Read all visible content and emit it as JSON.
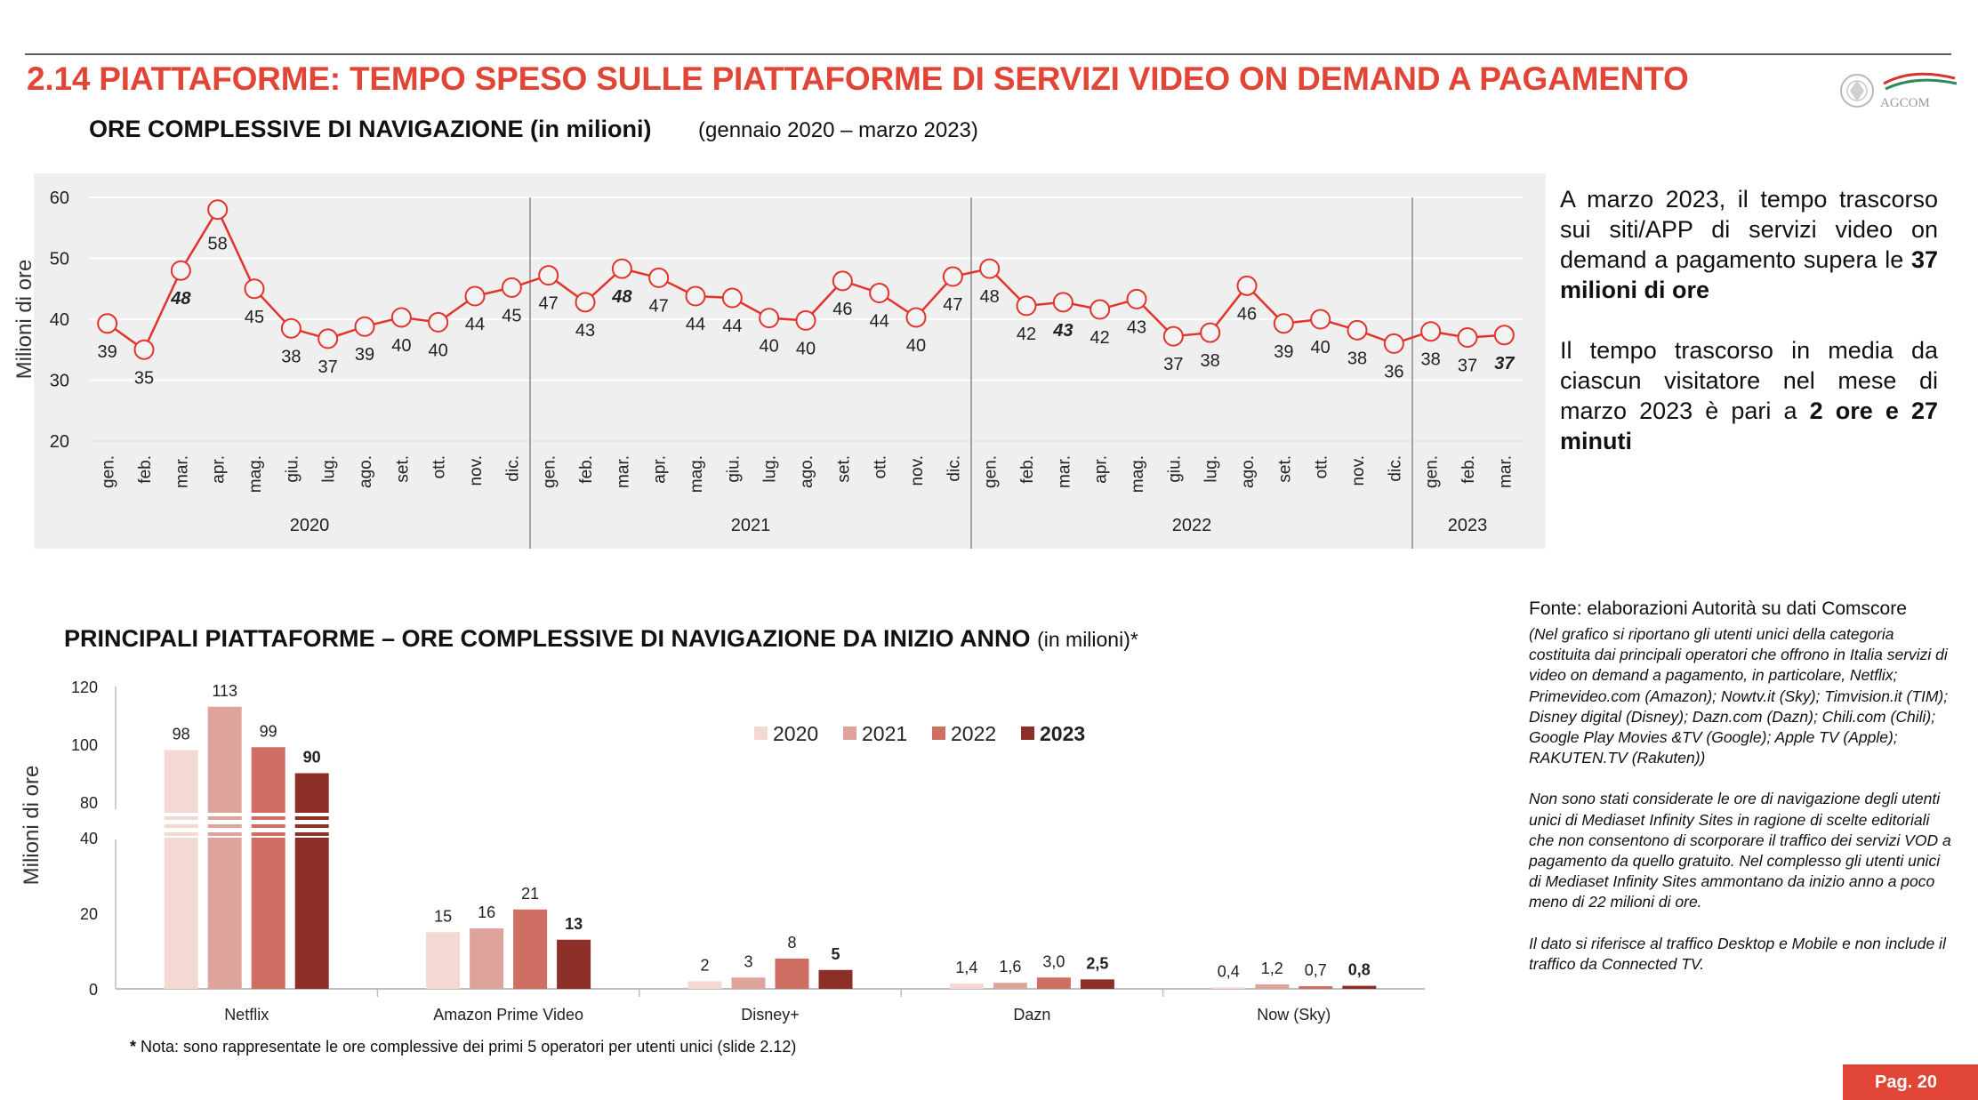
{
  "header": {
    "title": "2.14 PIATTAFORME: TEMPO SPESO SULLE PIATTAFORME DI SERVIZI VIDEO ON DEMAND A PAGAMENTO",
    "logo_text": "AGCOM"
  },
  "section1": {
    "title": "ORE COMPLESSIVE DI NAVIGAZIONE (in milioni)",
    "period": "(gennaio 2020 – marzo 2023)"
  },
  "side_text": {
    "p1_text": "A marzo 2023, il tempo trascorso sui siti/APP di servizi video on demand a pagamento supera le ",
    "p1_bold": "37 milioni di ore",
    "p2_text": "Il tempo trascorso in media da ciascun visitatore nel mese di marzo 2023 è pari a ",
    "p2_bold": "2 ore e 27 minuti"
  },
  "section2": {
    "title": "PRINCIPALI PIATTAFORME – ORE COMPLESSIVE DI NAVIGAZIONE DA INIZIO ANNO",
    "unit": "(in milioni)*"
  },
  "note": {
    "star": "*",
    "text": " Nota: sono rappresentate le ore complessive dei primi 5 operatori per utenti unici (slide 2.12)"
  },
  "source": {
    "fonte": "Fonte: elaborazioni Autorità su dati Comscore",
    "note1": "(Nel grafico si riportano gli utenti unici della categoria costituita dai principali operatori che offrono in Italia servizi di video on demand a pagamento, in particolare, Netflix; Primevideo.com (Amazon); Nowtv.it (Sky); Timvision.it (TIM); Disney digital (Disney); Dazn.com (Dazn); Chili.com (Chili); Google Play Movies &TV (Google); Apple TV (Apple);  RAKUTEN.TV (Rakuten))",
    "note2": "Non sono stati considerate le ore di navigazione degli utenti unici di Mediaset Infinity Sites in ragione di scelte editoriali che non consentono di scorporare il traffico dei servizi VOD a pagamento da quello gratuito. Nel complesso gli utenti unici di Mediaset Infinity Sites ammontano da inizio anno a poco meno di 22 milioni di ore.",
    "note3": "Il dato si riferisce al traffico Desktop e Mobile e non include il traffico da Connected TV."
  },
  "page_label": "Pag. 20",
  "colors": {
    "title_red": "#e04535",
    "line": "#e3342b",
    "y2020": "#f3d9d2",
    "y2021": "#dea39b",
    "y2022": "#cf6f63",
    "y2023": "#8c2f27"
  },
  "chart_data": [
    {
      "type": "line",
      "ylabel": "Milioni di ore",
      "ylim": [
        20,
        60
      ],
      "yticks": [
        20,
        30,
        40,
        50,
        60
      ],
      "grid": true,
      "x": [
        "gen.",
        "feb.",
        "mar.",
        "apr.",
        "mag.",
        "giu.",
        "lug.",
        "ago.",
        "set.",
        "ott.",
        "nov.",
        "dic.",
        "gen.",
        "feb.",
        "mar.",
        "apr.",
        "mag.",
        "giu.",
        "lug.",
        "ago.",
        "set.",
        "ott.",
        "nov.",
        "dic.",
        "gen.",
        "feb.",
        "mar.",
        "apr.",
        "mag.",
        "giu.",
        "lug.",
        "ago.",
        "set.",
        "ott.",
        "nov.",
        "dic.",
        "gen.",
        "feb.",
        "mar."
      ],
      "groups": [
        {
          "label": "2020",
          "count": 12
        },
        {
          "label": "2021",
          "count": 12
        },
        {
          "label": "2022",
          "count": 12
        },
        {
          "label": "2023",
          "count": 3
        }
      ],
      "values": [
        39.3,
        35.0,
        48.0,
        58.0,
        45.0,
        38.5,
        36.8,
        38.8,
        40.3,
        39.5,
        43.8,
        45.2,
        47.2,
        42.8,
        48.3,
        46.8,
        43.8,
        43.5,
        40.2,
        39.8,
        46.3,
        44.3,
        40.3,
        47.0,
        48.3,
        42.2,
        42.8,
        41.6,
        43.3,
        37.2,
        37.8,
        45.5,
        39.3,
        40.0,
        38.2,
        36.0,
        38.0,
        37.0,
        37.4
      ],
      "labels": [
        "39",
        "35",
        "48",
        "58",
        "45",
        "38",
        "37",
        "39",
        "40",
        "40",
        "44",
        "45",
        "47",
        "43",
        "48",
        "47",
        "44",
        "44",
        "40",
        "40",
        "46",
        "44",
        "40",
        "47",
        "48",
        "42",
        "43",
        "42",
        "43",
        "37",
        "38",
        "46",
        "39",
        "40",
        "38",
        "36",
        "38",
        "37",
        "37"
      ],
      "emphasized_labels": [
        2,
        14,
        26,
        38
      ]
    },
    {
      "type": "bar",
      "ylabel": "Milioni di ore",
      "yticks_lower": [
        0,
        20,
        40
      ],
      "yticks_upper": [
        80,
        100,
        120
      ],
      "broken_axis": true,
      "categories": [
        "Netflix",
        "Amazon Prime Video",
        "Disney+",
        "Dazn",
        "Now (Sky)"
      ],
      "legend_position": "top-center",
      "series": [
        {
          "name": "2020",
          "values": [
            98,
            15,
            2,
            1.4,
            0.4
          ],
          "labels": [
            "98",
            "15",
            "2",
            "1,4",
            "0,4"
          ]
        },
        {
          "name": "2021",
          "values": [
            113,
            16,
            3,
            1.6,
            1.2
          ],
          "labels": [
            "113",
            "16",
            "3",
            "1,6",
            "1,2"
          ]
        },
        {
          "name": "2022",
          "values": [
            99,
            21,
            8,
            3.0,
            0.7
          ],
          "labels": [
            "99",
            "21",
            "8",
            "3,0",
            "0,7"
          ]
        },
        {
          "name": "2023",
          "values": [
            90,
            13,
            5,
            2.5,
            0.8
          ],
          "labels": [
            "90",
            "13",
            "5",
            "2,5",
            "0,8"
          ]
        }
      ]
    }
  ]
}
